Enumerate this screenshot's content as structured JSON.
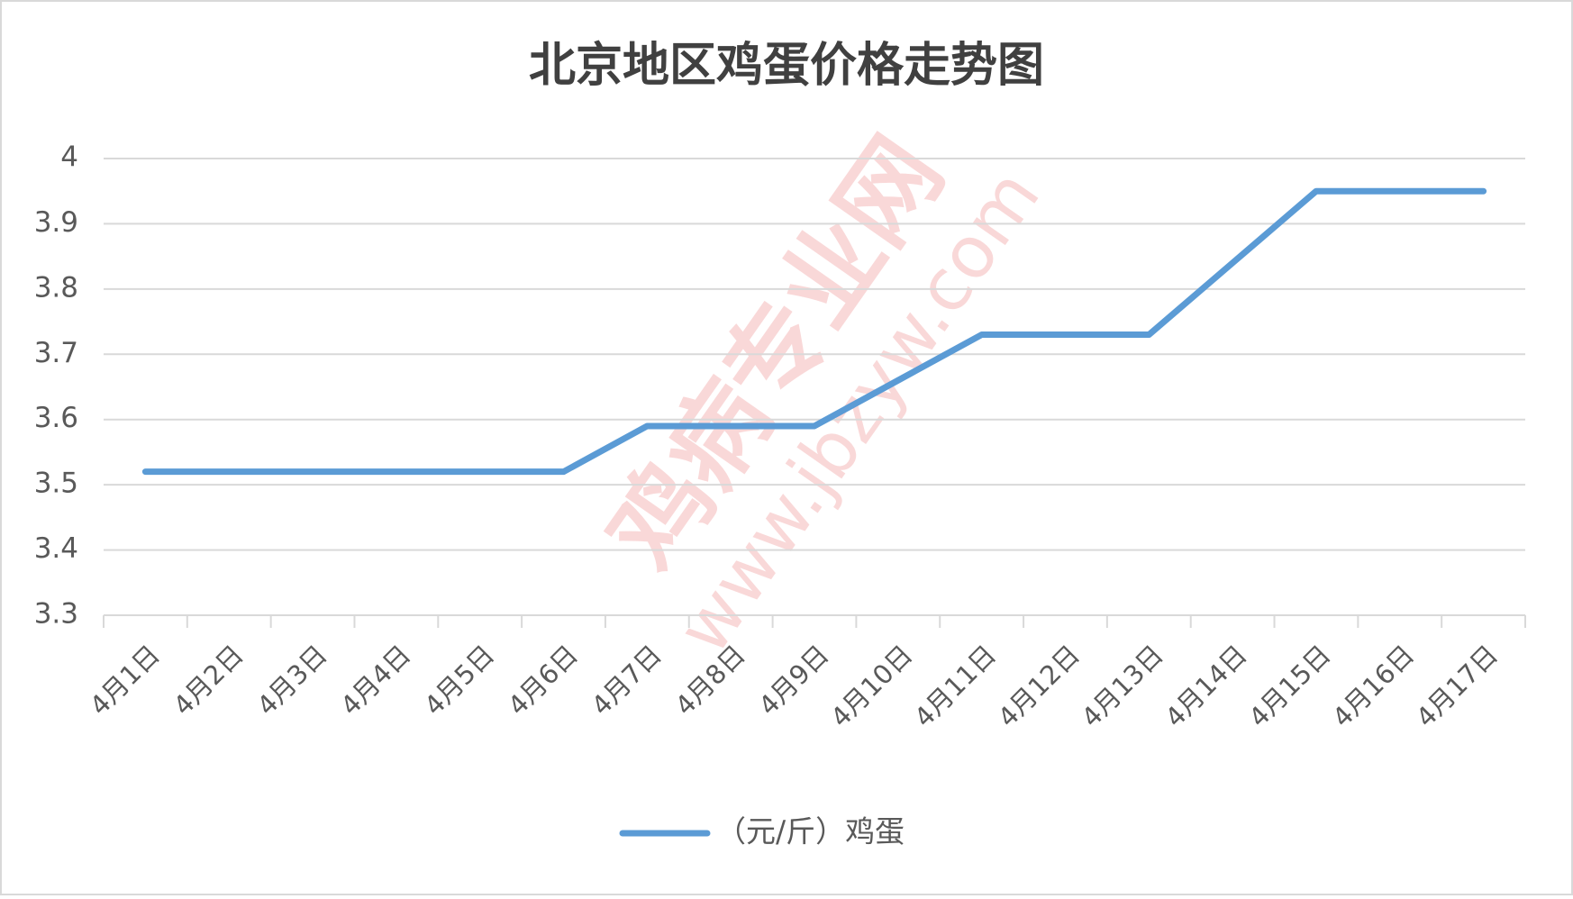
{
  "chart_data": {
    "type": "line",
    "title": "北京地区鸡蛋价格走势图",
    "categories": [
      "4月1日",
      "4月2日",
      "4月3日",
      "4月4日",
      "4月5日",
      "4月6日",
      "4月7日",
      "4月8日",
      "4月9日",
      "4月10日",
      "4月11日",
      "4月12日",
      "4月13日",
      "4月14日",
      "4月15日",
      "4月16日",
      "4月17日"
    ],
    "series": [
      {
        "name": "（元/斤）鸡蛋",
        "color": "#5b9bd5",
        "values": [
          3.52,
          3.52,
          3.52,
          3.52,
          3.52,
          3.52,
          3.59,
          3.59,
          3.59,
          3.66,
          3.73,
          3.73,
          3.73,
          3.84,
          3.95,
          3.95,
          3.95
        ]
      }
    ],
    "ylim": [
      3.3,
      4
    ],
    "yticks": [
      3.3,
      3.4,
      3.5,
      3.6,
      3.7,
      3.8,
      3.9,
      4
    ],
    "grid": true,
    "legend": "bottom",
    "watermark": [
      "鸡病专业网",
      "www.jbzyw.com"
    ]
  }
}
